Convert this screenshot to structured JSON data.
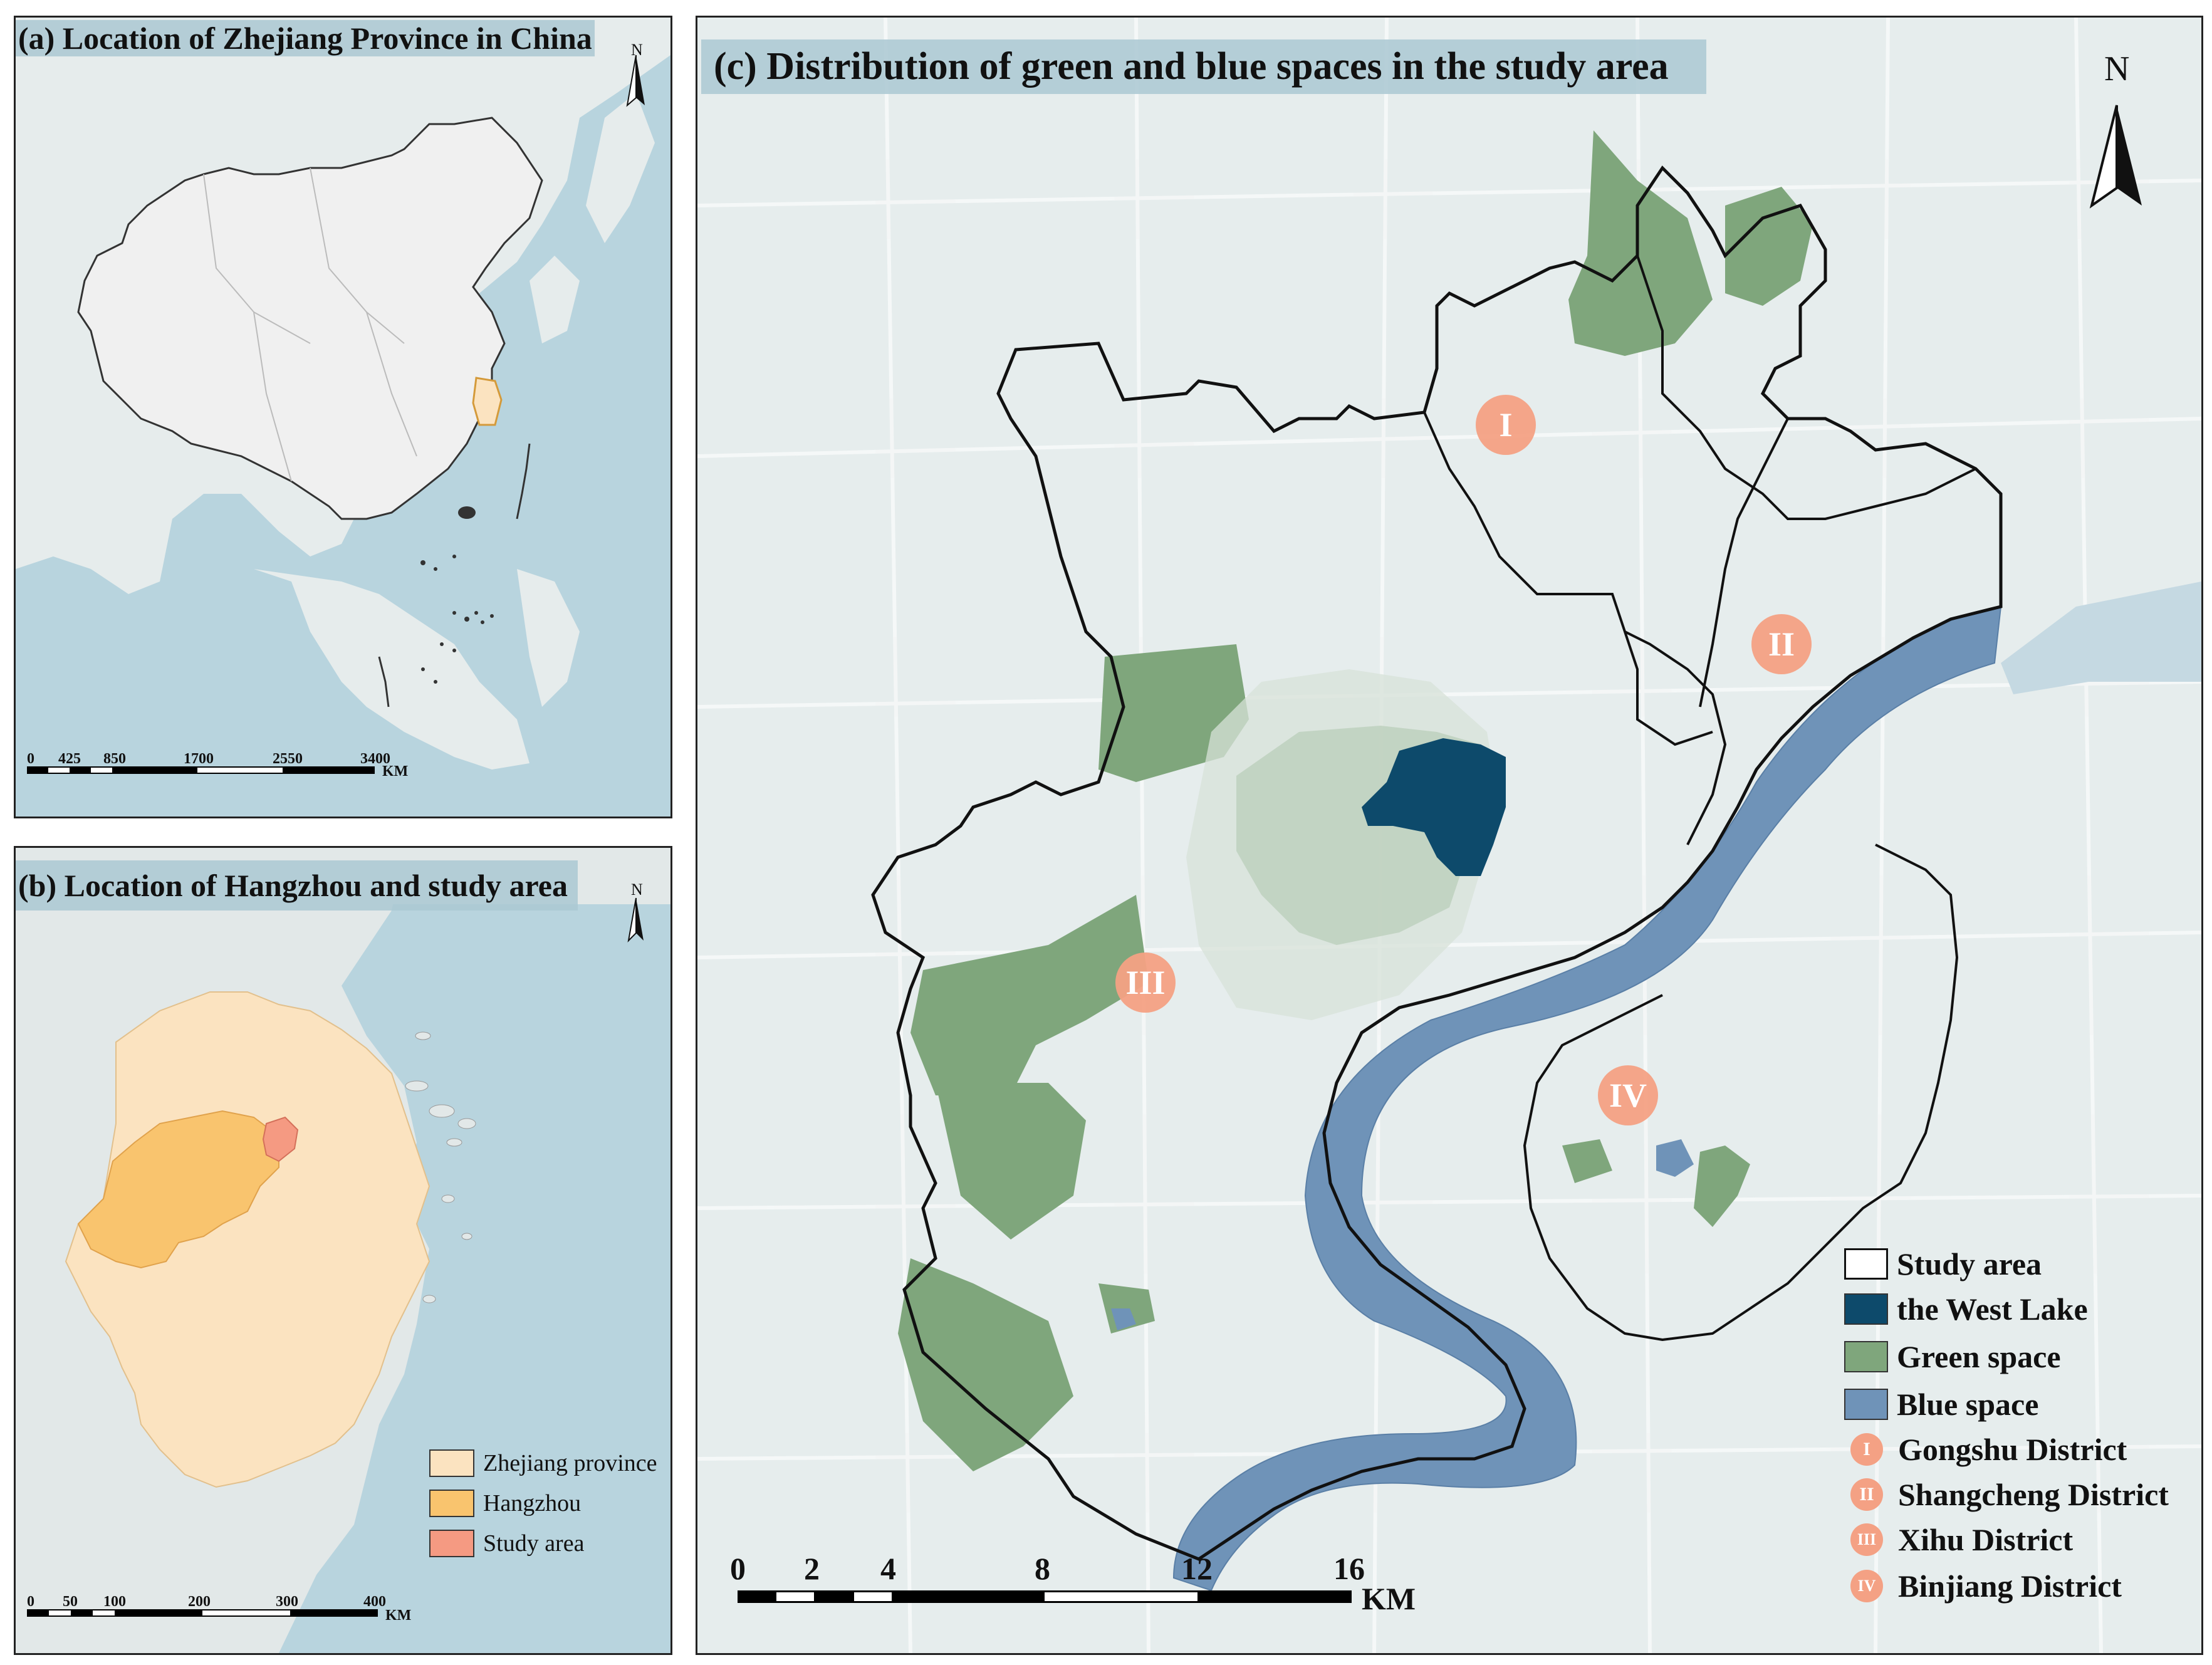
{
  "panel_a": {
    "title": "(a) Location of Zhejiang Province in China",
    "north": "N",
    "scale": {
      "ticks": [
        "0",
        "425",
        "850",
        "1700",
        "2550",
        "3400"
      ],
      "unit": "KM"
    }
  },
  "panel_b": {
    "title": "(b) Location of Hangzhou and study area",
    "north": "N",
    "scale": {
      "ticks": [
        "0",
        "50",
        "100",
        "200",
        "300",
        "400"
      ],
      "unit": "KM"
    },
    "legend": [
      {
        "label": "Zhejiang province",
        "color": "#fbe3c0"
      },
      {
        "label": "Hangzhou",
        "color": "#f9c46e"
      },
      {
        "label": "Study area",
        "color": "#f59a82"
      }
    ]
  },
  "panel_c": {
    "title": "(c) Distribution of green and blue spaces in the study area",
    "north": "N",
    "scale": {
      "ticks": [
        "0",
        "2",
        "4",
        "8",
        "12",
        "16"
      ],
      "unit": "KM"
    },
    "districts": [
      {
        "numeral": "I"
      },
      {
        "numeral": "II"
      },
      {
        "numeral": "III"
      },
      {
        "numeral": "IV"
      }
    ],
    "legend": [
      {
        "label": "Study area",
        "type": "outline",
        "color": "#ffffff"
      },
      {
        "label": "the West Lake",
        "type": "fill",
        "color": "#0d4a6b"
      },
      {
        "label": "Green space",
        "type": "fill",
        "color": "#7fa67c"
      },
      {
        "label": "Blue space",
        "type": "fill",
        "color": "#6f93b8"
      },
      {
        "label": "Gongshu District",
        "type": "circle",
        "numeral": "I"
      },
      {
        "label": "Shangcheng District",
        "type": "circle",
        "numeral": "II"
      },
      {
        "label": "Xihu District",
        "type": "circle",
        "numeral": "III"
      },
      {
        "label": "Binjiang District",
        "type": "circle",
        "numeral": "IV"
      }
    ],
    "colors": {
      "land": "#e8eeee",
      "west_lake": "#0d4a6b",
      "green": "#7fa67c",
      "blue": "#6f93b8",
      "district_marker": "#f4a184"
    }
  }
}
